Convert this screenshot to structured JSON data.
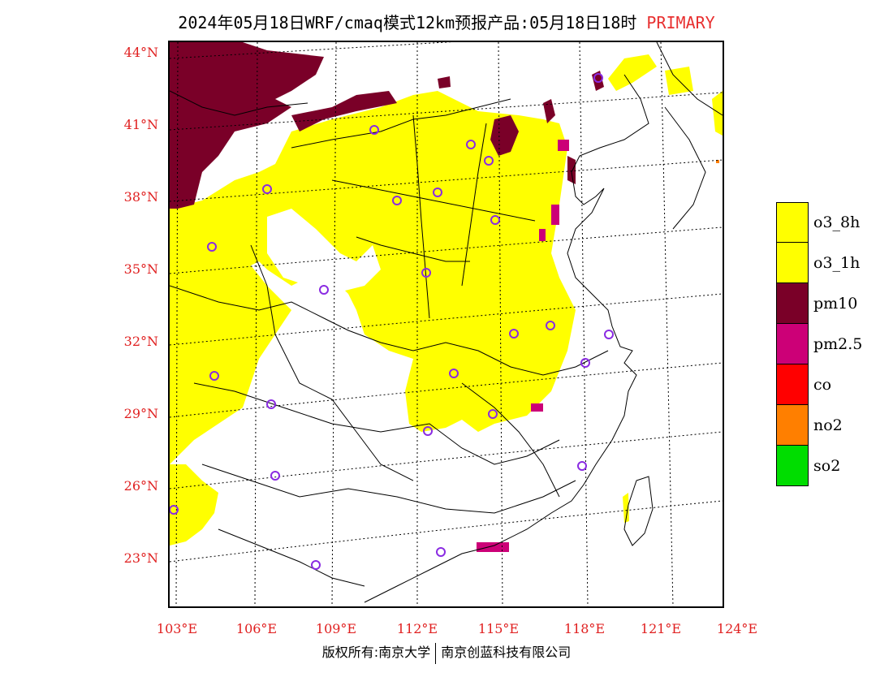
{
  "title": {
    "main": "2024年05月18日WRF/cmaq模式12km预报产品:05月18日18时",
    "tag": "PRIMARY"
  },
  "map": {
    "lat_labels": [
      "44°N",
      "41°N",
      "38°N",
      "35°N",
      "32°N",
      "29°N",
      "26°N",
      "23°N"
    ],
    "lon_labels": [
      "103°E",
      "106°E",
      "109°E",
      "112°E",
      "115°E",
      "118°E",
      "121°E",
      "124°E"
    ],
    "colors": {
      "o3_8h": "#ffff00",
      "pm10": "#7a0028",
      "pm2_5": "#cc0077",
      "no2": "#ff7f00",
      "boundary": "#000000",
      "station_circle": "#8a2be2"
    }
  },
  "legend": {
    "items": [
      {
        "label": "o3_8h",
        "color": "#ffff00"
      },
      {
        "label": "o3_1h",
        "color": "#ffff00"
      },
      {
        "label": "pm10",
        "color": "#7a0028"
      },
      {
        "label": "pm2.5",
        "color": "#cc0077"
      },
      {
        "label": "co",
        "color": "#ff0000"
      },
      {
        "label": "no2",
        "color": "#ff7f00"
      },
      {
        "label": "so2",
        "color": "#00dd00"
      }
    ]
  },
  "footer": {
    "left": "版权所有:南京大学",
    "right": "南京创蓝科技有限公司"
  }
}
